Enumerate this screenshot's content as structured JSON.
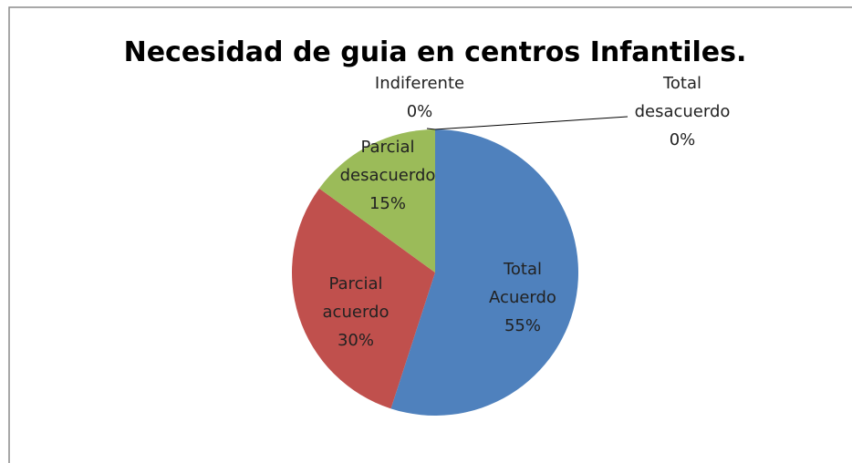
{
  "chart_data": {
    "type": "pie",
    "title": "Necesidad de guia en centros Infantiles.",
    "categories": [
      "Total Acuerdo",
      "Parcial acuerdo",
      "Parcial desacuerdo",
      "Indiferente",
      "Total desacuerdo"
    ],
    "values": [
      55,
      30,
      15,
      0,
      0
    ],
    "value_labels": [
      "55%",
      "30%",
      "15%",
      "0%",
      "0%"
    ],
    "colors": [
      "#4f81bd",
      "#c0504d",
      "#9bbb59",
      "#8064a2",
      "#4bacc6"
    ]
  }
}
